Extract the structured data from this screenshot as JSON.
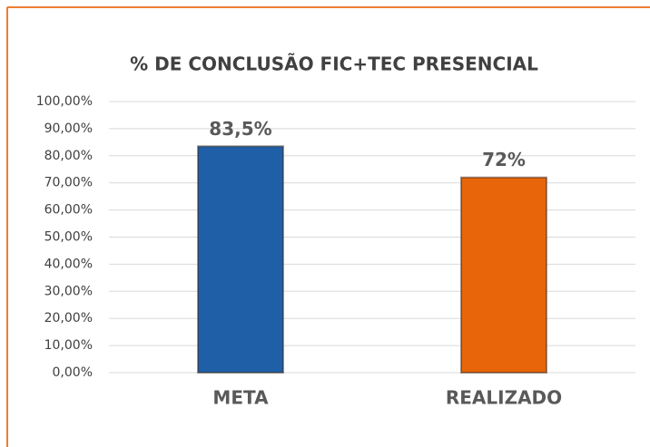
{
  "chart_data": {
    "type": "bar",
    "title": "% DE CONCLUSÃO FIC+TEC PRESENCIAL",
    "categories": [
      "META",
      "REALIZADO"
    ],
    "values": [
      83.5,
      72
    ],
    "value_labels": [
      "83,5%",
      "72%"
    ],
    "colors": [
      "#1f5fa8",
      "#e8650a"
    ],
    "ylim": [
      0,
      100
    ],
    "yticks": [
      {
        "value": 0,
        "label": "0,00%"
      },
      {
        "value": 10,
        "label": "10,00%"
      },
      {
        "value": 20,
        "label": "20,00%"
      },
      {
        "value": 30,
        "label": "30,00%"
      },
      {
        "value": 40,
        "label": "40,00%"
      },
      {
        "value": 50,
        "label": "50,00%"
      },
      {
        "value": 60,
        "label": "60,00%"
      },
      {
        "value": 70,
        "label": "70,00%"
      },
      {
        "value": 80,
        "label": "80,00%"
      },
      {
        "value": 90,
        "label": "90,00%"
      },
      {
        "value": 100,
        "label": "100,00%"
      }
    ],
    "grid": true
  }
}
